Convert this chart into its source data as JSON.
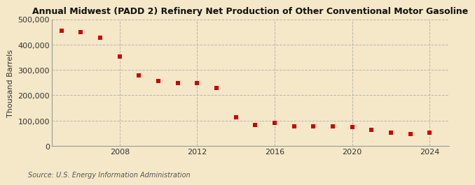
{
  "title": "Annual Midwest (PADD 2) Refinery Net Production of Other Conventional Motor Gasoline",
  "ylabel": "Thousand Barrels",
  "source": "Source: U.S. Energy Information Administration",
  "background_color": "#f5e8c8",
  "plot_background_color": "#f5e8c8",
  "marker_color": "#cc0000",
  "grid_color": "#b0b0b0",
  "years": [
    2005,
    2006,
    2007,
    2008,
    2009,
    2010,
    2011,
    2012,
    2013,
    2014,
    2015,
    2016,
    2017,
    2018,
    2019,
    2020,
    2021,
    2022,
    2023,
    2024
  ],
  "values": [
    455000,
    448000,
    427000,
    352000,
    279000,
    256000,
    248000,
    249000,
    230000,
    113000,
    82000,
    90000,
    77000,
    78000,
    78000,
    74000,
    63000,
    52000,
    48000,
    52000
  ],
  "ylim": [
    0,
    500000
  ],
  "yticks": [
    0,
    100000,
    200000,
    300000,
    400000,
    500000
  ],
  "xticks": [
    2008,
    2012,
    2016,
    2020,
    2024
  ],
  "xlim": [
    2004.5,
    2025
  ],
  "title_fontsize": 9,
  "tick_fontsize": 8,
  "ylabel_fontsize": 8,
  "source_fontsize": 7
}
